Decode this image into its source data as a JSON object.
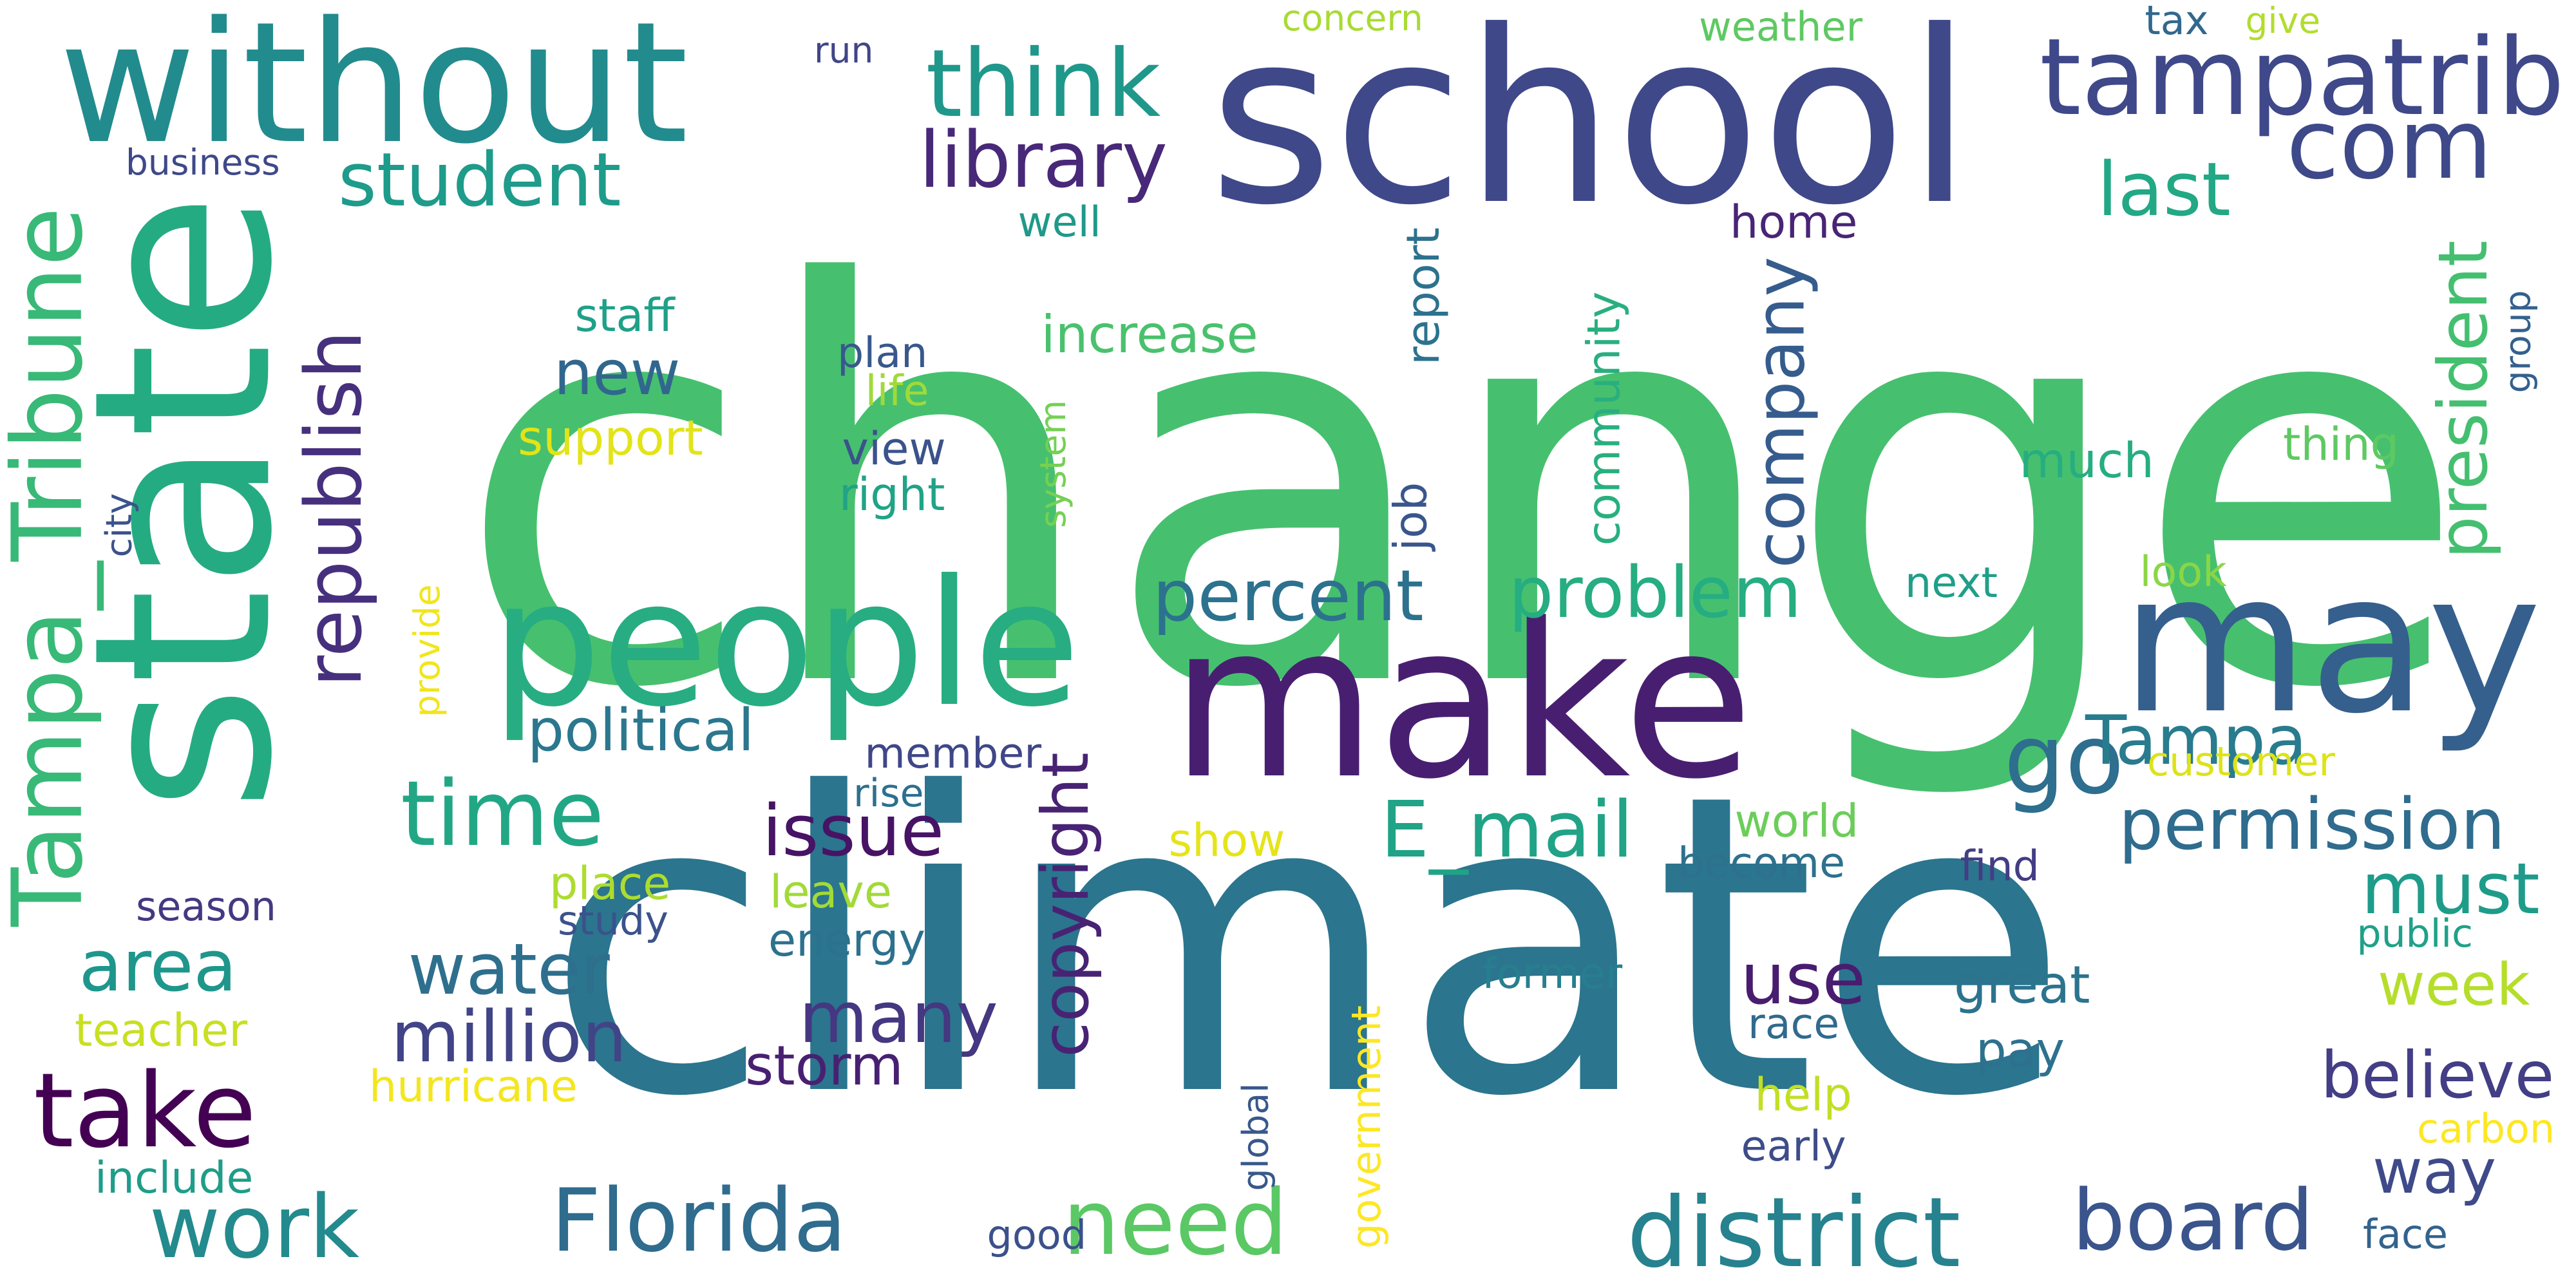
{
  "words": [
    {
      "text": "change",
      "color": "#46c06f",
      "rotated": false
    },
    {
      "text": "climate",
      "color": "#2b758e",
      "rotated": false
    },
    {
      "text": "school",
      "color": "#3f4889",
      "rotated": false
    },
    {
      "text": "state",
      "color": "#25ab82",
      "rotated": true
    },
    {
      "text": "without",
      "color": "#228b8d",
      "rotated": false
    },
    {
      "text": "make",
      "color": "#481f70",
      "rotated": false
    },
    {
      "text": "people",
      "color": "#27ad81",
      "rotated": false
    },
    {
      "text": "may",
      "color": "#355f8d",
      "rotated": false
    },
    {
      "text": "tampatrib",
      "color": "#3f4889",
      "rotated": false
    },
    {
      "text": "Tampa_Tribune",
      "color": "#38b977",
      "rotated": true
    },
    {
      "text": "think",
      "color": "#1f988b",
      "rotated": false
    },
    {
      "text": "com",
      "color": "#3e4989",
      "rotated": false
    },
    {
      "text": "library",
      "color": "#482878",
      "rotated": false
    },
    {
      "text": "student",
      "color": "#1e9b8a",
      "rotated": false
    },
    {
      "text": "last",
      "color": "#22a884",
      "rotated": false
    },
    {
      "text": "republish",
      "color": "#46307e",
      "rotated": true
    },
    {
      "text": "company",
      "color": "#365c8d",
      "rotated": true
    },
    {
      "text": "president",
      "color": "#44bf70",
      "rotated": true
    },
    {
      "text": "percent",
      "color": "#2c728e",
      "rotated": false
    },
    {
      "text": "problem",
      "color": "#26ad81",
      "rotated": false
    },
    {
      "text": "go",
      "color": "#2e6e8e",
      "rotated": false
    },
    {
      "text": "Tampa",
      "color": "#297b8e",
      "rotated": false
    },
    {
      "text": "time",
      "color": "#22a785",
      "rotated": false
    },
    {
      "text": "political",
      "color": "#2a778e",
      "rotated": false
    },
    {
      "text": "issue",
      "color": "#471365",
      "rotated": false
    },
    {
      "text": "E_mail",
      "color": "#20a386",
      "rotated": false
    },
    {
      "text": "permission",
      "color": "#2f6c8e",
      "rotated": false
    },
    {
      "text": "copyright",
      "color": "#482374",
      "rotated": true
    },
    {
      "text": "must",
      "color": "#1e9c89",
      "rotated": false
    },
    {
      "text": "area",
      "color": "#1f968b",
      "rotated": false
    },
    {
      "text": "water",
      "color": "#2e6f8e",
      "rotated": false
    },
    {
      "text": "million",
      "color": "#414487",
      "rotated": false
    },
    {
      "text": "many",
      "color": "#453781",
      "rotated": false
    },
    {
      "text": "use",
      "color": "#481d6f",
      "rotated": false
    },
    {
      "text": "take",
      "color": "#440154",
      "rotated": false
    },
    {
      "text": "work",
      "color": "#238a8d",
      "rotated": false
    },
    {
      "text": "Florida",
      "color": "#2f6c8e",
      "rotated": false
    },
    {
      "text": "need",
      "color": "#5ac864",
      "rotated": false
    },
    {
      "text": "district",
      "color": "#26828e",
      "rotated": false
    },
    {
      "text": "board",
      "color": "#3a548c",
      "rotated": false
    },
    {
      "text": "believe",
      "color": "#433e85",
      "rotated": false
    },
    {
      "text": "way",
      "color": "#3e4a89",
      "rotated": false
    },
    {
      "text": "week",
      "color": "#b5de2b",
      "rotated": false
    },
    {
      "text": "great",
      "color": "#2c738e",
      "rotated": false
    },
    {
      "text": "pay",
      "color": "#2d718e",
      "rotated": false
    },
    {
      "text": "storm",
      "color": "#482071",
      "rotated": false
    },
    {
      "text": "new",
      "color": "#31678e",
      "rotated": false
    },
    {
      "text": "support",
      "color": "#e2e418",
      "rotated": false
    },
    {
      "text": "staff",
      "color": "#1fa088",
      "rotated": false
    },
    {
      "text": "plan",
      "color": "#38588c",
      "rotated": false
    },
    {
      "text": "view",
      "color": "#3b528b",
      "rotated": false
    },
    {
      "text": "right",
      "color": "#20a386",
      "rotated": false
    },
    {
      "text": "life",
      "color": "#a0da39",
      "rotated": false
    },
    {
      "text": "increase",
      "color": "#4ac16d",
      "rotated": false
    },
    {
      "text": "report",
      "color": "#2c728e",
      "rotated": true
    },
    {
      "text": "job",
      "color": "#39568c",
      "rotated": true
    },
    {
      "text": "community",
      "color": "#29af7f",
      "rotated": true
    },
    {
      "text": "system",
      "color": "#75d054",
      "rotated": true
    },
    {
      "text": "home",
      "color": "#482576",
      "rotated": false
    },
    {
      "text": "well",
      "color": "#1f998a",
      "rotated": false
    },
    {
      "text": "much",
      "color": "#26ad81",
      "rotated": false
    },
    {
      "text": "thing",
      "color": "#5ec962",
      "rotated": false
    },
    {
      "text": "group",
      "color": "#34608d",
      "rotated": true
    },
    {
      "text": "next",
      "color": "#1f9f88",
      "rotated": false
    },
    {
      "text": "look",
      "color": "#8bd646",
      "rotated": false
    },
    {
      "text": "customer",
      "color": "#dde318",
      "rotated": false
    },
    {
      "text": "world",
      "color": "#6ccd5a",
      "rotated": false
    },
    {
      "text": "become",
      "color": "#2d718e",
      "rotated": false
    },
    {
      "text": "find",
      "color": "#433d84",
      "rotated": false
    },
    {
      "text": "public",
      "color": "#1fa188",
      "rotated": false
    },
    {
      "text": "carbon",
      "color": "#fde725",
      "rotated": false
    },
    {
      "text": "face",
      "color": "#33638d",
      "rotated": false
    },
    {
      "text": "help",
      "color": "#c2df23",
      "rotated": false
    },
    {
      "text": "early",
      "color": "#3e4c8a",
      "rotated": false
    },
    {
      "text": "race",
      "color": "#306a8e",
      "rotated": false
    },
    {
      "text": "former",
      "color": "#277f8e",
      "rotated": false
    },
    {
      "text": "global",
      "color": "#38588c",
      "rotated": true
    },
    {
      "text": "government",
      "color": "#fde725",
      "rotated": true
    },
    {
      "text": "good",
      "color": "#3b518b",
      "rotated": false
    },
    {
      "text": "energy",
      "color": "#2c718e",
      "rotated": false
    },
    {
      "text": "member",
      "color": "#3f4788",
      "rotated": false
    },
    {
      "text": "rise",
      "color": "#2d708e",
      "rotated": false
    },
    {
      "text": "show",
      "color": "#e5e419",
      "rotated": false
    },
    {
      "text": "leave",
      "color": "#a2da37",
      "rotated": false
    },
    {
      "text": "place",
      "color": "#addc30",
      "rotated": false
    },
    {
      "text": "study",
      "color": "#3b528b",
      "rotated": false
    },
    {
      "text": "season",
      "color": "#453882",
      "rotated": false
    },
    {
      "text": "teacher",
      "color": "#c8e020",
      "rotated": false
    },
    {
      "text": "hurricane",
      "color": "#f4e61e",
      "rotated": false
    },
    {
      "text": "include",
      "color": "#1e9d89",
      "rotated": false
    },
    {
      "text": "provide",
      "color": "#f1e51d",
      "rotated": true
    },
    {
      "text": "city",
      "color": "#3b528b",
      "rotated": true
    },
    {
      "text": "business",
      "color": "#3f4889",
      "rotated": false
    },
    {
      "text": "run",
      "color": "#404588",
      "rotated": false
    },
    {
      "text": "concern",
      "color": "#a8db34",
      "rotated": false
    },
    {
      "text": "weather",
      "color": "#5ec962",
      "rotated": false
    },
    {
      "text": "tax",
      "color": "#31688e",
      "rotated": false
    },
    {
      "text": "give",
      "color": "#b2dd2d",
      "rotated": false
    }
  ]
}
